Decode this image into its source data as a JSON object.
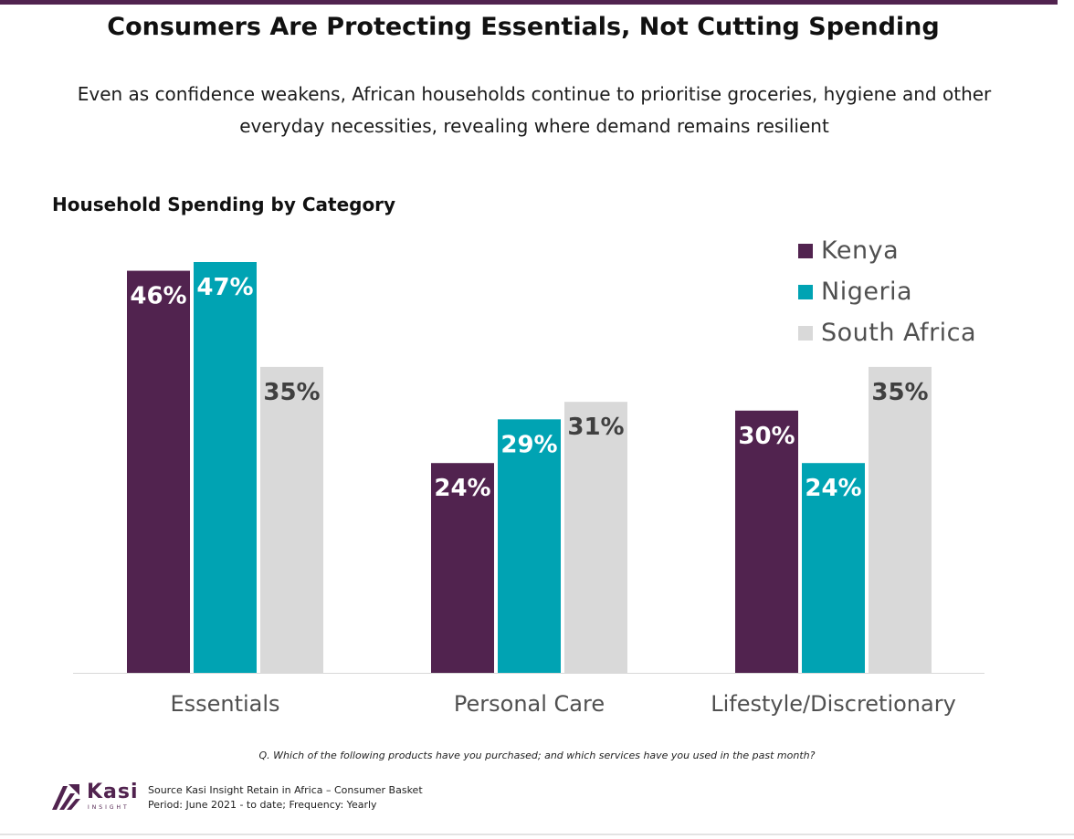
{
  "header": {
    "title": "Consumers Are Protecting Essentials, Not Cutting Spending",
    "subtitle_line1": "Even as confidence weakens, African households continue to prioritise groceries, hygiene and other",
    "subtitle_line2": "everyday necessities, revealing where demand remains resilient"
  },
  "chart_data": {
    "type": "bar",
    "title": "Household Spending by Category",
    "categories": [
      "Essentials",
      "Personal Care",
      "Lifestyle/Discretionary"
    ],
    "series": [
      {
        "name": "Kenya",
        "color": "#51234f",
        "values": [
          46,
          24,
          30
        ],
        "labels": [
          "46%",
          "24%",
          "30%"
        ]
      },
      {
        "name": "Nigeria",
        "color": "#00a3b3",
        "values": [
          47,
          29,
          24
        ],
        "labels": [
          "47%",
          "29%",
          "24%"
        ]
      },
      {
        "name": "South Africa",
        "color": "#d9d9d9",
        "values": [
          35,
          31,
          35
        ],
        "labels": [
          "35%",
          "31%",
          "35%"
        ]
      }
    ],
    "ylim": [
      0,
      47
    ],
    "grid": false,
    "legend": "top-right"
  },
  "footer": {
    "question": "Q. Which of the following products have you purchased; and which services have you used in the past month?",
    "source_line1": "Source Kasi Insight Retain in Africa – Consumer Basket",
    "source_line2": "Period: June 2021 - to date; Frequency: Yearly",
    "logo_name": "Kasi",
    "logo_tagline": "INSIGHT"
  }
}
